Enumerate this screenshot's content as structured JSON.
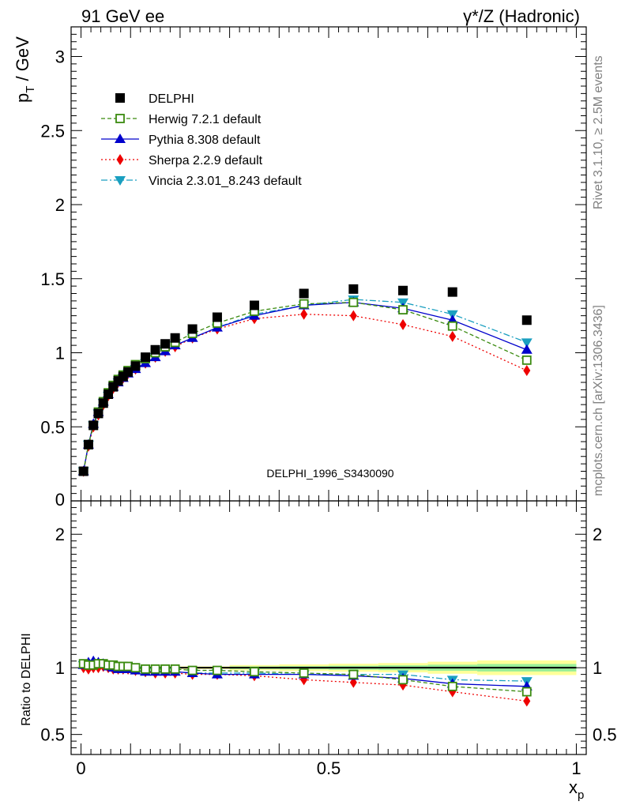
{
  "header": {
    "left": "91 GeV ee",
    "right": "γ*/Z (Hadronic)"
  },
  "side_text": {
    "top": "Rivet 3.1.10, ≥ 2.5M events",
    "bottom": "mcplots.cern.ch [arXiv:1306.3436]"
  },
  "watermark": "DELPHI_1996_S3430090",
  "colors": {
    "DELPHI": "#000000",
    "Herwig": "#3a8a0f",
    "Pythia": "#0000cc",
    "Sherpa": "#ee0000",
    "Vincia": "#1a9fc0",
    "band_yellow": "#ffff99",
    "band_green": "#99ee99"
  },
  "chart_data": [
    {
      "type": "line",
      "panel": "main",
      "ylabel": "p_T / GeV",
      "ylabel_parts": {
        "p": "p",
        "sub": "T",
        "rest": " / GeV"
      },
      "xlim": [
        -0.02,
        1.02
      ],
      "ylim": [
        0,
        3.2
      ],
      "y_ticks": [
        {
          "v": 0.5,
          "label": "0.5"
        },
        {
          "v": 1,
          "label": "1"
        },
        {
          "v": 1.5,
          "label": "1.5"
        },
        {
          "v": 2,
          "label": "2"
        },
        {
          "v": 2.5,
          "label": "2.5"
        },
        {
          "v": 3,
          "label": "3"
        }
      ],
      "y_tick_zero_label": "0",
      "legend_placement": "top-left",
      "x": [
        0.005,
        0.015,
        0.025,
        0.035,
        0.045,
        0.055,
        0.065,
        0.075,
        0.085,
        0.095,
        0.11,
        0.13,
        0.15,
        0.17,
        0.19,
        0.225,
        0.275,
        0.35,
        0.45,
        0.55,
        0.65,
        0.75,
        0.9
      ],
      "series": [
        {
          "name": "DELPHI",
          "key": "DELPHI",
          "marker": "square",
          "values": [
            0.2,
            0.38,
            0.51,
            0.59,
            0.66,
            0.72,
            0.77,
            0.81,
            0.84,
            0.87,
            0.91,
            0.97,
            1.02,
            1.06,
            1.1,
            1.16,
            1.24,
            1.32,
            1.4,
            1.43,
            1.42,
            1.41,
            1.22
          ]
        },
        {
          "name": "Herwig 7.2.1 default",
          "key": "Herwig",
          "marker": "open-square",
          "dash": "5,3",
          "values": [
            0.2,
            0.38,
            0.51,
            0.6,
            0.67,
            0.73,
            0.78,
            0.82,
            0.85,
            0.88,
            0.92,
            0.96,
            1.0,
            1.04,
            1.07,
            1.13,
            1.2,
            1.28,
            1.33,
            1.34,
            1.29,
            1.18,
            0.95
          ]
        },
        {
          "name": "Pythia 8.308 default",
          "key": "Pythia",
          "marker": "triangle-up",
          "dash": "",
          "values": [
            0.2,
            0.38,
            0.52,
            0.6,
            0.67,
            0.72,
            0.77,
            0.8,
            0.83,
            0.86,
            0.89,
            0.93,
            0.97,
            1.01,
            1.05,
            1.1,
            1.17,
            1.25,
            1.32,
            1.34,
            1.3,
            1.22,
            1.02
          ]
        },
        {
          "name": "Sherpa 2.2.9 default",
          "key": "Sherpa",
          "marker": "diamond",
          "dash": "2,3",
          "values": [
            0.2,
            0.37,
            0.5,
            0.58,
            0.65,
            0.71,
            0.76,
            0.8,
            0.83,
            0.86,
            0.89,
            0.93,
            0.97,
            1.01,
            1.04,
            1.1,
            1.16,
            1.23,
            1.26,
            1.25,
            1.19,
            1.11,
            0.88
          ]
        },
        {
          "name": "Vincia 2.3.01_8.243 default",
          "key": "Vincia",
          "marker": "triangle-down",
          "dash": "8,3,2,3",
          "values": [
            0.2,
            0.38,
            0.51,
            0.59,
            0.66,
            0.71,
            0.76,
            0.8,
            0.83,
            0.86,
            0.89,
            0.93,
            0.97,
            1.01,
            1.05,
            1.1,
            1.17,
            1.26,
            1.32,
            1.36,
            1.34,
            1.26,
            1.07
          ]
        }
      ]
    },
    {
      "type": "line",
      "panel": "ratio",
      "ylabel": "Ratio to DELPHI",
      "xlabel": "x_p",
      "xlabel_parts": {
        "p": "x",
        "sub": "p"
      },
      "xlim": [
        -0.02,
        1.02
      ],
      "ylim": [
        0.35,
        2.25
      ],
      "x_ticks": [
        {
          "v": 0,
          "label": "0"
        },
        {
          "v": 0.5,
          "label": "0.5"
        },
        {
          "v": 1,
          "label": "1"
        }
      ],
      "y_ticks": [
        {
          "v": 0.5,
          "label": "0.5"
        },
        {
          "v": 1,
          "label": "1"
        },
        {
          "v": 2,
          "label": "2"
        }
      ],
      "x": [
        0.005,
        0.015,
        0.025,
        0.035,
        0.045,
        0.055,
        0.065,
        0.075,
        0.085,
        0.095,
        0.11,
        0.13,
        0.15,
        0.17,
        0.19,
        0.225,
        0.275,
        0.35,
        0.45,
        0.55,
        0.65,
        0.75,
        0.9
      ],
      "band": {
        "edges": [
          0,
          0.3,
          0.4,
          0.5,
          0.6,
          0.7,
          0.8,
          1.0
        ],
        "yellow_halfwidth": [
          0.01,
          0.02,
          0.025,
          0.03,
          0.035,
          0.045,
          0.055
        ],
        "green_halfwidth": [
          0.005,
          0.01,
          0.012,
          0.015,
          0.018,
          0.023,
          0.028
        ]
      },
      "series": [
        {
          "name": "Herwig 7.2.1 default",
          "key": "Herwig",
          "marker": "open-square",
          "dash": "5,3",
          "values": [
            1.03,
            1.02,
            1.02,
            1.03,
            1.03,
            1.02,
            1.02,
            1.01,
            1.01,
            1.01,
            1.0,
            0.99,
            0.99,
            0.99,
            0.99,
            0.98,
            0.98,
            0.97,
            0.96,
            0.95,
            0.91,
            0.86,
            0.82
          ]
        },
        {
          "name": "Pythia 8.308 default",
          "key": "Pythia",
          "marker": "triangle-up",
          "dash": "",
          "values": [
            1.02,
            1.04,
            1.05,
            1.04,
            1.03,
            1.01,
            1.0,
            0.99,
            0.99,
            0.99,
            0.98,
            0.97,
            0.97,
            0.97,
            0.97,
            0.96,
            0.95,
            0.95,
            0.95,
            0.94,
            0.92,
            0.88,
            0.86
          ]
        },
        {
          "name": "Sherpa 2.2.9 default",
          "key": "Sherpa",
          "marker": "diamond",
          "dash": "2,3",
          "values": [
            1.0,
            0.99,
            1.0,
            1.0,
            1.01,
            1.0,
            0.99,
            0.99,
            0.99,
            0.99,
            0.98,
            0.97,
            0.96,
            0.96,
            0.96,
            0.95,
            0.95,
            0.94,
            0.91,
            0.89,
            0.87,
            0.82,
            0.75
          ]
        },
        {
          "name": "Vincia 2.3.01_8.243 default",
          "key": "Vincia",
          "marker": "triangle-down",
          "dash": "8,3,2,3",
          "values": [
            1.02,
            1.03,
            1.03,
            1.03,
            1.02,
            1.01,
            1.0,
            0.99,
            0.99,
            0.99,
            0.98,
            0.97,
            0.97,
            0.97,
            0.97,
            0.96,
            0.96,
            0.96,
            0.95,
            0.95,
            0.95,
            0.91,
            0.9
          ]
        }
      ]
    }
  ]
}
